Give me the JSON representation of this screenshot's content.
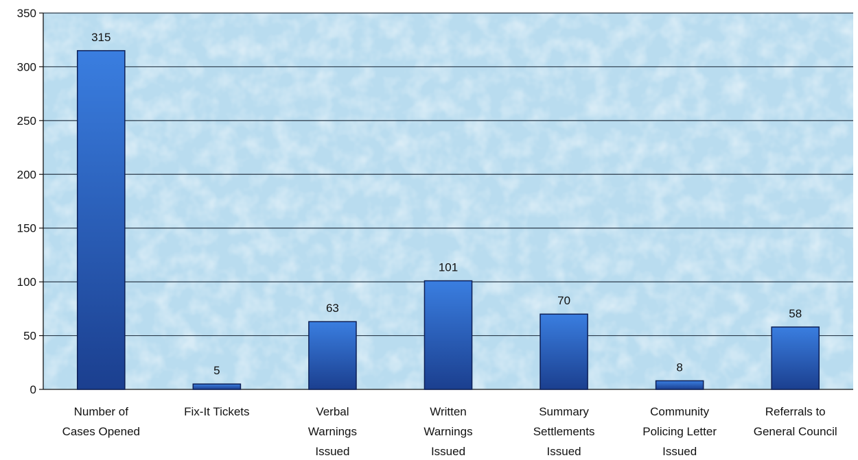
{
  "chart_data": {
    "type": "bar",
    "title": "",
    "xlabel": "",
    "ylabel": "",
    "ylim": [
      0,
      350
    ],
    "yticks": [
      0,
      50,
      100,
      150,
      200,
      250,
      300,
      350
    ],
    "grid": true,
    "legend": "none",
    "categories": [
      [
        "Number of",
        "Cases Opened"
      ],
      [
        "Fix-It Tickets"
      ],
      [
        "Verbal",
        "Warnings",
        "Issued"
      ],
      [
        "Written",
        "Warnings",
        "Issued"
      ],
      [
        "Summary",
        "Settlements",
        "Issued"
      ],
      [
        "Community",
        "Policing Letter",
        "Issued"
      ],
      [
        "Referrals to",
        "General Council"
      ]
    ],
    "values": [
      315,
      5,
      63,
      101,
      70,
      8,
      58
    ],
    "data_labels": [
      "315",
      "5",
      "63",
      "101",
      "70",
      "8",
      "58"
    ],
    "colors": {
      "bar_light": "#3a7ee0",
      "bar_dark": "#1b3f8f",
      "bar_stroke": "#0d1f55",
      "background": "#b9dcef",
      "gridline": "#2a3a4a"
    }
  }
}
